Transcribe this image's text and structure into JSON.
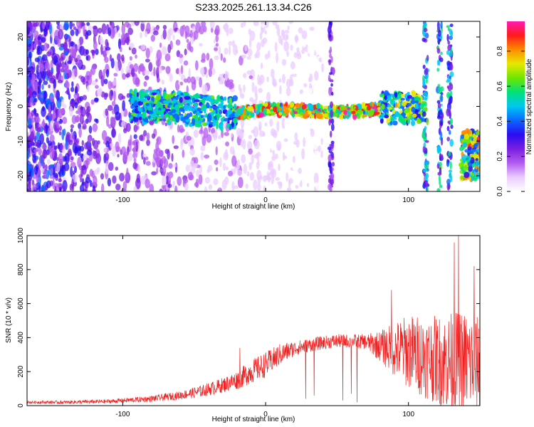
{
  "title": "S233.2025.261.13.34.C26",
  "colors": {
    "snr_line": "#ee2222",
    "colormap": [
      "#ffffff",
      "#e9ccff",
      "#b45cf0",
      "#7a1fe0",
      "#2b0cf2",
      "#0a66ff",
      "#00c8f0",
      "#00e07a",
      "#6ee600",
      "#e8e800",
      "#ff8c00",
      "#ff1a1a",
      "#ff1ab4"
    ]
  },
  "chart_data": [
    {
      "type": "heatmap",
      "name": "spectrogram",
      "xlabel": "Height of straight line (km)",
      "ylabel": "Frequency (Hz)",
      "xlim": [
        -167,
        150
      ],
      "ylim": [
        -24.5,
        24.5
      ],
      "xticks": [
        -100,
        0,
        100
      ],
      "yticks": [
        -20,
        -10,
        0,
        10,
        20
      ],
      "colorbar": {
        "label": "Normalized spectral amplitude",
        "range": [
          0,
          0.97
        ],
        "ticks": [
          0.0,
          0.2,
          0.4,
          0.6,
          0.8
        ]
      },
      "features": {
        "ridge_center_hz": [
          [
            -85,
            0.0
          ],
          [
            -60,
            -0.5
          ],
          [
            -30,
            -2.0
          ],
          [
            -20,
            -2.0
          ],
          [
            0,
            -1.0
          ],
          [
            20,
            -1.0
          ],
          [
            40,
            -1.5
          ],
          [
            60,
            -1.5
          ],
          [
            80,
            -0.7
          ],
          [
            100,
            -0.5
          ],
          [
            110,
            -0.5
          ]
        ],
        "vertical_streaks_km": [
          46,
          112,
          122,
          129
        ],
        "cluster_center": [
          144,
          -14
        ]
      }
    },
    {
      "type": "line",
      "name": "snr",
      "xlabel": "Height of straight line (km)",
      "ylabel": "SNR (10 * v/v)",
      "xlim": [
        -167,
        150
      ],
      "ylim": [
        0,
        1000
      ],
      "xticks": [
        -100,
        0,
        100
      ],
      "yticks": [
        0,
        200,
        400,
        600,
        800,
        1000
      ],
      "envelope": {
        "x": [
          -167,
          -140,
          -110,
          -80,
          -60,
          -45,
          -30,
          -20,
          -10,
          0,
          10,
          20,
          30,
          40,
          50,
          60,
          70,
          80,
          90,
          100,
          110,
          120,
          130,
          140,
          150
        ],
        "mean": [
          20,
          20,
          25,
          40,
          60,
          85,
          120,
          150,
          200,
          240,
          300,
          335,
          355,
          370,
          380,
          380,
          375,
          350,
          330,
          320,
          290,
          270,
          250,
          260,
          240
        ],
        "spread": [
          8,
          10,
          12,
          18,
          25,
          35,
          45,
          55,
          70,
          75,
          65,
          45,
          40,
          40,
          40,
          40,
          45,
          90,
          160,
          220,
          240,
          260,
          300,
          300,
          280
        ]
      },
      "spikes": [
        {
          "x": -18,
          "y": 340
        },
        {
          "x": 28,
          "y": 40
        },
        {
          "x": 34,
          "y": 60
        },
        {
          "x": 54,
          "y": 30
        },
        {
          "x": 60,
          "y": 70
        },
        {
          "x": 64,
          "y": 20
        },
        {
          "x": 88,
          "y": 680
        },
        {
          "x": 132,
          "y": 960
        },
        {
          "x": 135,
          "y": 1000
        },
        {
          "x": 146,
          "y": 820
        }
      ]
    }
  ]
}
